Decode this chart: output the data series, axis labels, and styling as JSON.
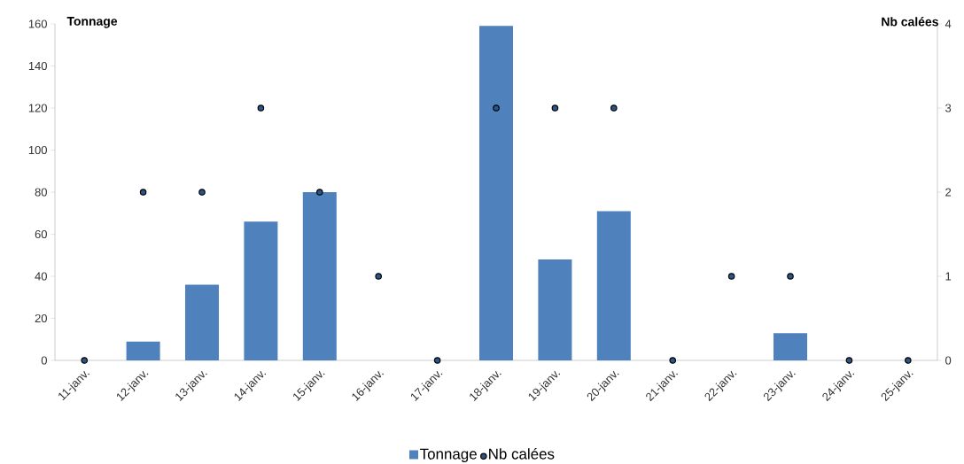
{
  "chart_data": {
    "type": "bar",
    "categories": [
      "11-janv.",
      "12-janv.",
      "13-janv.",
      "14-janv.",
      "15-janv.",
      "16-janv.",
      "17-janv.",
      "18-janv.",
      "19-janv.",
      "20-janv.",
      "21-janv.",
      "22-janv.",
      "23-janv.",
      "24-janv.",
      "25-janv."
    ],
    "series": [
      {
        "name": "Tonnage",
        "color": "#4f81bd",
        "values": [
          0,
          9,
          36,
          66,
          80,
          0,
          0,
          159,
          48,
          71,
          0,
          0,
          13,
          0,
          0
        ]
      },
      {
        "name": "Nb calées",
        "type": "scatter",
        "axis": "y2",
        "color": "#2c5486",
        "marker": "circle",
        "values": [
          0,
          2,
          2,
          3,
          2,
          1,
          0,
          3,
          3,
          3,
          0,
          1,
          1,
          0,
          0
        ]
      }
    ],
    "ylabel": "Tonnage",
    "y2label": "Nb calées",
    "ylim": [
      0,
      160
    ],
    "yticks": [
      0,
      20,
      40,
      60,
      80,
      100,
      120,
      140,
      160
    ],
    "y2lim": [
      0,
      4
    ],
    "y2ticks": [
      0,
      1,
      2,
      3,
      4
    ],
    "grid": false,
    "legend": "bottom"
  }
}
